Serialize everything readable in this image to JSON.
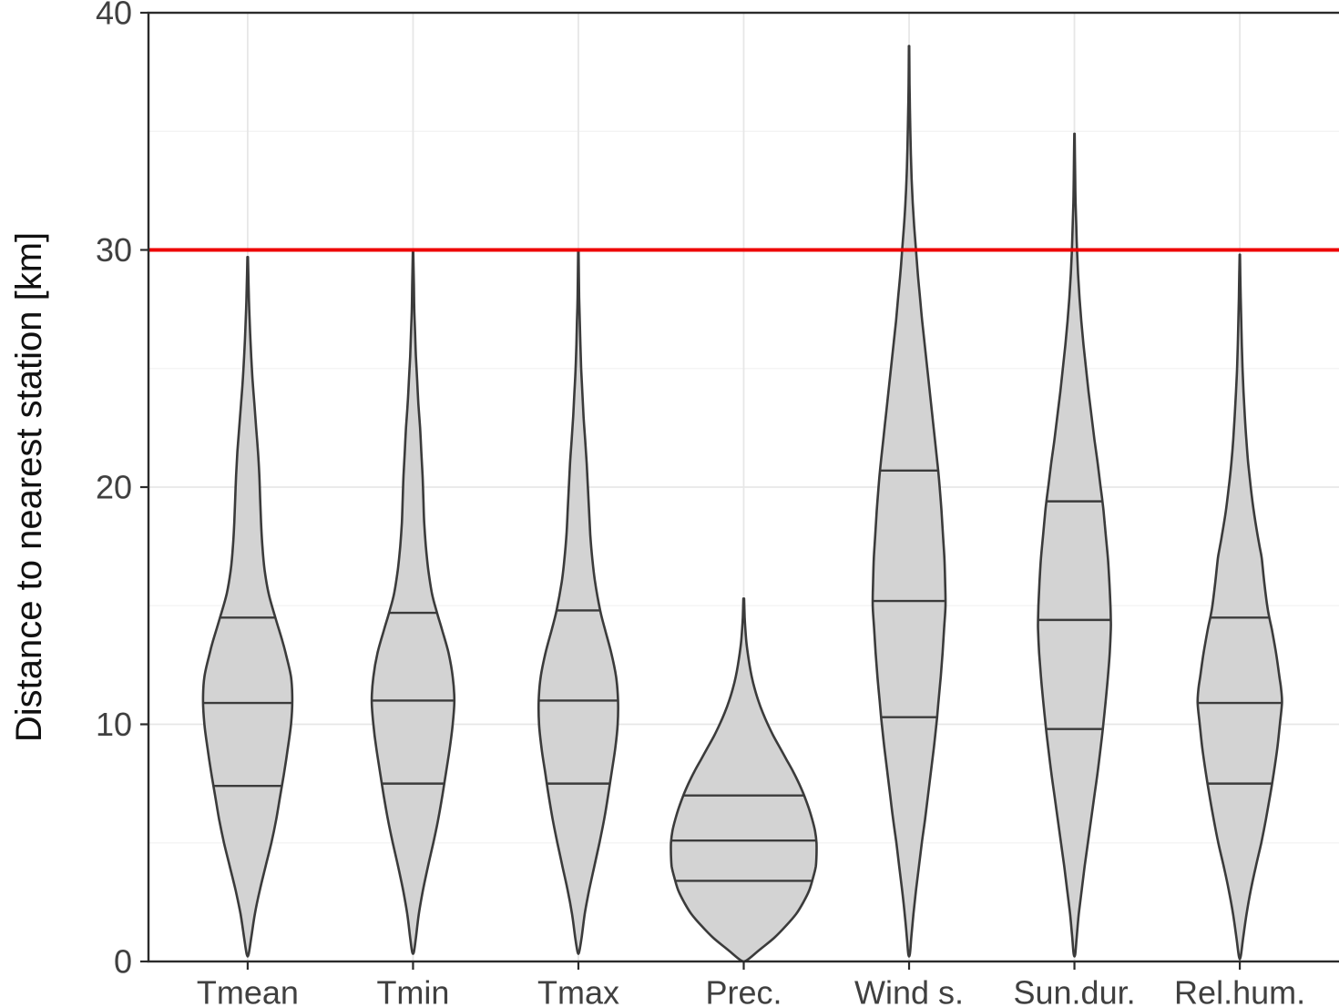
{
  "chart_data": {
    "type": "violin",
    "title": "",
    "xlabel": "",
    "ylabel": "Distance to nearest station [km]",
    "ylim": [
      0,
      40
    ],
    "yticks": [
      0,
      10,
      20,
      30,
      40
    ],
    "yticks_minor": [
      5,
      15,
      25,
      35
    ],
    "grid": true,
    "legend": "none",
    "reference_line": {
      "y": 30,
      "color": "#EE0000"
    },
    "style": {
      "violin_fill": "#D3D3D3",
      "violin_stroke": "#3B3B3B",
      "grid_major_color": "#E7E7E7",
      "grid_minor_color": "#F2F2F2",
      "axis_color": "#2B2B2B",
      "tick_label_color": "#404040",
      "background": "#FFFFFF"
    },
    "categories": [
      "Tmean",
      "Tmin",
      "Tmax",
      "Prec.",
      "Wind s.",
      "Sun.dur.",
      "Rel.hum."
    ],
    "series": [
      {
        "label": "Tmean",
        "min": 0.3,
        "max": 29.7,
        "quartiles": {
          "q1": 7.4,
          "median": 10.9,
          "q3": 14.5
        },
        "halfwidth_frac": 0.27,
        "profile": [
          [
            0.3,
            0.02
          ],
          [
            1,
            0.08
          ],
          [
            2,
            0.16
          ],
          [
            3,
            0.27
          ],
          [
            4,
            0.4
          ],
          [
            5,
            0.53
          ],
          [
            6,
            0.64
          ],
          [
            7,
            0.73
          ],
          [
            8,
            0.82
          ],
          [
            9,
            0.9
          ],
          [
            10,
            0.97
          ],
          [
            11,
            1.0
          ],
          [
            12,
            0.97
          ],
          [
            13,
            0.85
          ],
          [
            13.5,
            0.78
          ],
          [
            14.5,
            0.62
          ],
          [
            15.5,
            0.47
          ],
          [
            16.5,
            0.38
          ],
          [
            17.5,
            0.33
          ],
          [
            18.5,
            0.3
          ],
          [
            19.5,
            0.28
          ],
          [
            20.5,
            0.26
          ],
          [
            21.5,
            0.23
          ],
          [
            22.5,
            0.19
          ],
          [
            23.5,
            0.15
          ],
          [
            24.5,
            0.11
          ],
          [
            25.5,
            0.08
          ],
          [
            26.5,
            0.055
          ],
          [
            27.5,
            0.035
          ],
          [
            28.5,
            0.02
          ],
          [
            29.7,
            0.006
          ]
        ]
      },
      {
        "label": "Tmin",
        "min": 0.4,
        "max": 29.9,
        "quartiles": {
          "q1": 7.5,
          "median": 11.0,
          "q3": 14.7
        },
        "halfwidth_frac": 0.25,
        "profile": [
          [
            0.4,
            0.02
          ],
          [
            1,
            0.07
          ],
          [
            2,
            0.14
          ],
          [
            3,
            0.24
          ],
          [
            4,
            0.36
          ],
          [
            5,
            0.49
          ],
          [
            6,
            0.61
          ],
          [
            7,
            0.71
          ],
          [
            8,
            0.8
          ],
          [
            9,
            0.89
          ],
          [
            10,
            0.96
          ],
          [
            11,
            1.0
          ],
          [
            12,
            0.96
          ],
          [
            13,
            0.86
          ],
          [
            14,
            0.7
          ],
          [
            14.7,
            0.58
          ],
          [
            15.5,
            0.46
          ],
          [
            16.5,
            0.37
          ],
          [
            17.5,
            0.31
          ],
          [
            18.5,
            0.27
          ],
          [
            19.5,
            0.25
          ],
          [
            20.5,
            0.23
          ],
          [
            21.5,
            0.2
          ],
          [
            22.5,
            0.17
          ],
          [
            23.5,
            0.13
          ],
          [
            24.5,
            0.1
          ],
          [
            25.5,
            0.07
          ],
          [
            26.5,
            0.05
          ],
          [
            27.5,
            0.03
          ],
          [
            28.5,
            0.02
          ],
          [
            29.9,
            0.006
          ]
        ]
      },
      {
        "label": "Tmax",
        "min": 0.4,
        "max": 29.9,
        "quartiles": {
          "q1": 7.5,
          "median": 11.0,
          "q3": 14.8
        },
        "halfwidth_frac": 0.24,
        "profile": [
          [
            0.4,
            0.02
          ],
          [
            1,
            0.08
          ],
          [
            2,
            0.16
          ],
          [
            3,
            0.27
          ],
          [
            4,
            0.4
          ],
          [
            5,
            0.53
          ],
          [
            6,
            0.65
          ],
          [
            7,
            0.75
          ],
          [
            8,
            0.84
          ],
          [
            9,
            0.93
          ],
          [
            10,
            0.99
          ],
          [
            11,
            1.0
          ],
          [
            12,
            0.95
          ],
          [
            13,
            0.83
          ],
          [
            14,
            0.67
          ],
          [
            14.8,
            0.55
          ],
          [
            16,
            0.42
          ],
          [
            17,
            0.35
          ],
          [
            18,
            0.3
          ],
          [
            19,
            0.27
          ],
          [
            20,
            0.24
          ],
          [
            21,
            0.21
          ],
          [
            22,
            0.17
          ],
          [
            23,
            0.13
          ],
          [
            24,
            0.1
          ],
          [
            25,
            0.07
          ],
          [
            26,
            0.05
          ],
          [
            27,
            0.035
          ],
          [
            28,
            0.02
          ],
          [
            29.9,
            0.006
          ]
        ]
      },
      {
        "label": "Prec.",
        "min": 0.05,
        "max": 15.3,
        "quartiles": {
          "q1": 3.4,
          "median": 5.1,
          "q3": 7.0
        },
        "halfwidth_frac": 0.44,
        "profile": [
          [
            0.05,
            0.04
          ],
          [
            0.5,
            0.22
          ],
          [
            1,
            0.42
          ],
          [
            1.5,
            0.58
          ],
          [
            2,
            0.72
          ],
          [
            2.5,
            0.82
          ],
          [
            3,
            0.9
          ],
          [
            3.5,
            0.95
          ],
          [
            4,
            0.99
          ],
          [
            4.5,
            1.0
          ],
          [
            5,
            1.0
          ],
          [
            5.5,
            0.98
          ],
          [
            6,
            0.94
          ],
          [
            6.5,
            0.89
          ],
          [
            7,
            0.83
          ],
          [
            7.5,
            0.76
          ],
          [
            8,
            0.68
          ],
          [
            8.5,
            0.59
          ],
          [
            9,
            0.5
          ],
          [
            9.5,
            0.41
          ],
          [
            10,
            0.33
          ],
          [
            10.5,
            0.26
          ],
          [
            11,
            0.2
          ],
          [
            11.5,
            0.15
          ],
          [
            12,
            0.11
          ],
          [
            12.5,
            0.08
          ],
          [
            13,
            0.055
          ],
          [
            13.5,
            0.035
          ],
          [
            14,
            0.022
          ],
          [
            14.5,
            0.013
          ],
          [
            15.3,
            0.005
          ]
        ]
      },
      {
        "label": "Wind s.",
        "min": 0.3,
        "max": 38.6,
        "quartiles": {
          "q1": 10.3,
          "median": 15.2,
          "q3": 20.7
        },
        "halfwidth_frac": 0.22,
        "profile": [
          [
            0.3,
            0.02
          ],
          [
            1,
            0.06
          ],
          [
            2,
            0.12
          ],
          [
            3,
            0.19
          ],
          [
            4,
            0.27
          ],
          [
            5,
            0.35
          ],
          [
            6,
            0.44
          ],
          [
            7,
            0.52
          ],
          [
            8,
            0.6
          ],
          [
            9,
            0.68
          ],
          [
            10,
            0.75
          ],
          [
            10.3,
            0.77
          ],
          [
            11,
            0.81
          ],
          [
            12,
            0.87
          ],
          [
            13,
            0.92
          ],
          [
            14,
            0.96
          ],
          [
            15,
            1.0
          ],
          [
            16,
            0.99
          ],
          [
            17,
            0.97
          ],
          [
            18,
            0.93
          ],
          [
            19,
            0.89
          ],
          [
            20,
            0.84
          ],
          [
            20.7,
            0.8
          ],
          [
            22,
            0.71
          ],
          [
            23,
            0.64
          ],
          [
            24,
            0.57
          ],
          [
            25,
            0.5
          ],
          [
            26,
            0.43
          ],
          [
            27,
            0.36
          ],
          [
            28,
            0.3
          ],
          [
            29,
            0.24
          ],
          [
            30,
            0.19
          ],
          [
            31,
            0.14
          ],
          [
            32,
            0.1
          ],
          [
            33,
            0.07
          ],
          [
            34,
            0.05
          ],
          [
            35,
            0.035
          ],
          [
            36,
            0.022
          ],
          [
            37,
            0.013
          ],
          [
            38.6,
            0.005
          ]
        ]
      },
      {
        "label": "Sun.dur.",
        "min": 0.3,
        "max": 34.9,
        "quartiles": {
          "q1": 9.8,
          "median": 14.4,
          "q3": 19.4
        },
        "halfwidth_frac": 0.22,
        "profile": [
          [
            0.3,
            0.02
          ],
          [
            1,
            0.06
          ],
          [
            2,
            0.12
          ],
          [
            3,
            0.2
          ],
          [
            4,
            0.28
          ],
          [
            5,
            0.37
          ],
          [
            6,
            0.46
          ],
          [
            7,
            0.55
          ],
          [
            8,
            0.64
          ],
          [
            9,
            0.72
          ],
          [
            9.8,
            0.78
          ],
          [
            11,
            0.86
          ],
          [
            12,
            0.92
          ],
          [
            13,
            0.97
          ],
          [
            14,
            1.0
          ],
          [
            14.4,
            1.0
          ],
          [
            15,
            0.99
          ],
          [
            16,
            0.96
          ],
          [
            17,
            0.92
          ],
          [
            18,
            0.86
          ],
          [
            19,
            0.8
          ],
          [
            19.4,
            0.77
          ],
          [
            20,
            0.72
          ],
          [
            21,
            0.64
          ],
          [
            22,
            0.55
          ],
          [
            23,
            0.47
          ],
          [
            24,
            0.39
          ],
          [
            25,
            0.32
          ],
          [
            26,
            0.25
          ],
          [
            27,
            0.19
          ],
          [
            28,
            0.14
          ],
          [
            29,
            0.1
          ],
          [
            30,
            0.07
          ],
          [
            31,
            0.05
          ],
          [
            32,
            0.03
          ],
          [
            33,
            0.02
          ],
          [
            34.9,
            0.005
          ]
        ]
      },
      {
        "label": "Rel.hum.",
        "min": 0.2,
        "max": 29.8,
        "quartiles": {
          "q1": 7.5,
          "median": 10.9,
          "q3": 14.5
        },
        "halfwidth_frac": 0.255,
        "profile": [
          [
            0.2,
            0.02
          ],
          [
            1,
            0.08
          ],
          [
            2,
            0.16
          ],
          [
            3,
            0.26
          ],
          [
            4,
            0.38
          ],
          [
            5,
            0.51
          ],
          [
            6,
            0.62
          ],
          [
            7,
            0.72
          ],
          [
            8,
            0.81
          ],
          [
            9,
            0.89
          ],
          [
            10,
            0.95
          ],
          [
            10.9,
            1.0
          ],
          [
            11.5,
            0.98
          ],
          [
            12,
            0.94
          ],
          [
            13,
            0.86
          ],
          [
            14,
            0.76
          ],
          [
            14.5,
            0.7
          ],
          [
            15,
            0.65
          ],
          [
            16,
            0.58
          ],
          [
            17,
            0.52
          ],
          [
            17.5,
            0.47
          ],
          [
            18,
            0.42
          ],
          [
            19,
            0.33
          ],
          [
            20,
            0.26
          ],
          [
            21,
            0.2
          ],
          [
            22,
            0.155
          ],
          [
            23,
            0.12
          ],
          [
            24,
            0.09
          ],
          [
            25,
            0.065
          ],
          [
            26,
            0.048
          ],
          [
            27,
            0.034
          ],
          [
            28,
            0.022
          ],
          [
            29,
            0.012
          ],
          [
            29.8,
            0.005
          ]
        ]
      }
    ]
  }
}
